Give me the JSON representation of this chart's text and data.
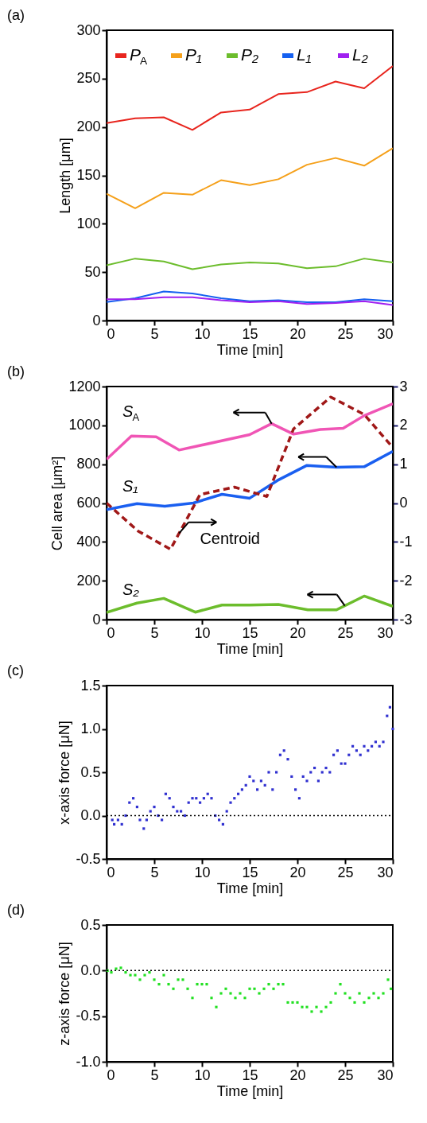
{
  "chart_data": [
    {
      "type": "line",
      "xlabel": "Time [min]",
      "ylabel": "Length [μm]",
      "xlim": [
        0,
        30
      ],
      "ylim": [
        0,
        300
      ],
      "xticks": [
        0,
        5,
        10,
        15,
        20,
        25,
        30
      ],
      "yticks": [
        0,
        50,
        100,
        150,
        200,
        250,
        300
      ],
      "legend": "top",
      "annotations": [
        "(a)"
      ],
      "x": [
        0,
        3,
        6,
        9,
        12,
        15,
        18,
        21,
        24,
        27,
        30
      ],
      "series": [
        {
          "name": "P$_{A}$",
          "color": "#e8251e",
          "values": [
            204,
            209,
            210,
            197,
            215,
            218,
            234,
            236,
            247,
            240,
            263
          ]
        },
        {
          "name": "P₁",
          "color": "#f5a01a",
          "values": [
            131,
            116,
            132,
            130,
            145,
            140,
            146,
            161,
            168,
            160,
            178
          ]
        },
        {
          "name": "P₂",
          "color": "#6cbd2c",
          "values": [
            57,
            64,
            61,
            53,
            58,
            60,
            59,
            54,
            56,
            64,
            60
          ]
        },
        {
          "name": "L₁",
          "color": "#1560f0",
          "values": [
            19,
            23,
            30,
            28,
            23,
            20,
            21,
            19,
            19,
            22,
            20
          ]
        },
        {
          "name": "L₂",
          "color": "#a020f0",
          "values": [
            22,
            22,
            24,
            24,
            21,
            19,
            20,
            17,
            18,
            20,
            16
          ]
        }
      ]
    },
    {
      "type": "line",
      "xlabel": "Time [min]",
      "ylabel": "Cell area [μm²]",
      "xlim": [
        0,
        30
      ],
      "ylim": [
        0,
        1200
      ],
      "xticks": [
        0,
        5,
        10,
        15,
        20,
        25,
        30
      ],
      "yticks": [
        0,
        200,
        400,
        600,
        800,
        1000,
        1200
      ],
      "y2lim": [
        -3,
        3
      ],
      "y2ticks": [
        -3,
        -2,
        -1,
        0,
        1,
        2,
        3
      ],
      "annotations": [
        "(b)"
      ],
      "series": [
        {
          "name": "S$_{A}$",
          "color": "#f055b5",
          "x": [
            0,
            2.6,
            5.2,
            7.6,
            15,
            17.3,
            19.6,
            22.4,
            24.8,
            27,
            30
          ],
          "values": [
            825,
            945,
            941,
            873,
            952,
            1009,
            955,
            979,
            985,
            1050,
            1111
          ]
        },
        {
          "name": "S₁",
          "color": "#1a5ff0",
          "x": [
            0,
            3.2,
            6.1,
            9.1,
            12.1,
            15,
            17.9,
            21,
            24.1,
            27,
            30
          ],
          "values": [
            566,
            597,
            584,
            600,
            645,
            625,
            716,
            794,
            784,
            787,
            866
          ]
        },
        {
          "name": "S₂",
          "color": "#6cbd2c",
          "x": [
            0,
            3.2,
            6,
            9.3,
            12.1,
            15,
            18,
            21.1,
            24.1,
            27,
            30
          ],
          "values": [
            37,
            85,
            109,
            38,
            75,
            75,
            78,
            50,
            50,
            121,
            68
          ]
        },
        {
          "name": "Centroid",
          "color": "#a01818",
          "axis": "y2",
          "line_style": "dashed",
          "x": [
            0,
            3.3,
            6.7,
            9.8,
            13.4,
            16.8,
            19.6,
            23.5,
            27,
            30
          ],
          "values": [
            0,
            -0.72,
            -1.19,
            0.22,
            0.41,
            0.17,
            1.91,
            2.73,
            2.28,
            1.43
          ]
        }
      ]
    },
    {
      "type": "scatter",
      "xlabel": "Time [min]",
      "ylabel": "x-axis force [μN]",
      "xlim": [
        0,
        30
      ],
      "ylim": [
        -0.5,
        1.5
      ],
      "xticks": [
        0,
        5,
        10,
        15,
        20,
        25,
        30
      ],
      "yticks": [
        {
          "value": -0.5,
          "label": "-0.5"
        },
        {
          "value": 0,
          "label": "0.0"
        },
        {
          "value": 0.5,
          "label": "0.5"
        },
        {
          "value": 1,
          "label": "1.0"
        },
        {
          "value": 1.5,
          "label": "1.5"
        }
      ],
      "annotations": [
        "(c)"
      ],
      "ref_lines": [
        {
          "axis": "y",
          "value": 0,
          "line_style": "dotted",
          "color": "#000000"
        }
      ],
      "x": [
        0.6,
        0.8,
        1.2,
        1.6,
        2.0,
        2.4,
        2.8,
        3.2,
        3.5,
        3.9,
        4.2,
        4.6,
        5.0,
        5.4,
        5.8,
        6.2,
        6.6,
        7.0,
        7.4,
        7.8,
        8.2,
        8.6,
        9.0,
        9.4,
        9.8,
        10.2,
        10.6,
        11.0,
        11.4,
        11.8,
        12.2,
        12.6,
        13.0,
        13.4,
        13.8,
        14.2,
        14.6,
        15.0,
        15.4,
        15.8,
        16.2,
        16.6,
        17.0,
        17.4,
        17.8,
        18.2,
        18.6,
        19.0,
        19.4,
        19.8,
        20.2,
        20.6,
        21.0,
        21.4,
        21.8,
        22.2,
        22.6,
        23.0,
        23.4,
        23.8,
        24.2,
        24.6,
        25.0,
        25.4,
        25.8,
        26.2,
        26.6,
        27.0,
        27.4,
        27.8,
        28.2,
        28.6,
        29.0,
        29.4,
        29.7,
        30.0
      ],
      "series": [
        {
          "color": "#3030d0",
          "values": [
            -0.05,
            -0.1,
            -0.05,
            -0.1,
            0.0,
            0.15,
            0.2,
            0.1,
            -0.05,
            -0.15,
            -0.05,
            0.05,
            0.1,
            0.0,
            -0.05,
            0.25,
            0.2,
            0.1,
            0.05,
            0.05,
            0.0,
            0.15,
            0.2,
            0.2,
            0.15,
            0.2,
            0.25,
            0.2,
            0.0,
            -0.05,
            -0.1,
            0.05,
            0.15,
            0.2,
            0.25,
            0.3,
            0.35,
            0.45,
            0.4,
            0.3,
            0.4,
            0.35,
            0.5,
            0.3,
            0.5,
            0.7,
            0.75,
            0.65,
            0.45,
            0.3,
            0.2,
            0.45,
            0.4,
            0.5,
            0.55,
            0.4,
            0.5,
            0.55,
            0.5,
            0.7,
            0.75,
            0.6,
            0.6,
            0.7,
            0.8,
            0.75,
            0.7,
            0.8,
            0.75,
            0.8,
            0.85,
            0.8,
            0.85,
            1.15,
            1.25,
            1.0
          ]
        }
      ]
    },
    {
      "type": "scatter",
      "xlabel": "Time [min]",
      "ylabel": "z-axis force [μN]",
      "xlim": [
        0,
        30
      ],
      "ylim": [
        -1.0,
        0.5
      ],
      "xticks": [
        0,
        5,
        10,
        15,
        20,
        25,
        30
      ],
      "yticks": [
        {
          "value": -1,
          "label": "-1.0"
        },
        {
          "value": -0.5,
          "label": "-0.5"
        },
        {
          "value": 0,
          "label": "0.0"
        },
        {
          "value": 0.5,
          "label": "0.5"
        }
      ],
      "annotations": [
        "(d)"
      ],
      "ref_lines": [
        {
          "axis": "y",
          "value": 0,
          "line_style": "dotted",
          "color": "#000000"
        }
      ],
      "x": [
        0.1,
        0.5,
        1.0,
        1.5,
        2.0,
        2.5,
        3.0,
        3.5,
        4.0,
        4.5,
        5.0,
        5.5,
        6.0,
        6.5,
        7.0,
        7.5,
        8.0,
        8.5,
        9.0,
        9.5,
        10.0,
        10.5,
        11.0,
        11.5,
        12.0,
        12.5,
        13.0,
        13.5,
        14.0,
        14.5,
        15.0,
        15.5,
        16.0,
        16.5,
        17.0,
        17.5,
        18.0,
        18.5,
        19.0,
        19.5,
        20.0,
        20.5,
        21.0,
        21.5,
        22.0,
        22.5,
        23.0,
        23.5,
        24.0,
        24.5,
        25.0,
        25.5,
        26.0,
        26.5,
        27.0,
        27.5,
        28.0,
        28.5,
        29.0,
        29.5,
        29.8
      ],
      "series": [
        {
          "color": "#22e022",
          "values": [
            0.0,
            -0.02,
            0.02,
            0.03,
            -0.02,
            -0.05,
            -0.05,
            -0.1,
            -0.05,
            -0.02,
            -0.1,
            -0.15,
            -0.05,
            -0.15,
            -0.2,
            -0.1,
            -0.1,
            -0.2,
            -0.3,
            -0.15,
            -0.15,
            -0.15,
            -0.3,
            -0.4,
            -0.25,
            -0.2,
            -0.25,
            -0.3,
            -0.25,
            -0.3,
            -0.2,
            -0.2,
            -0.25,
            -0.2,
            -0.15,
            -0.2,
            -0.15,
            -0.15,
            -0.35,
            -0.35,
            -0.35,
            -0.4,
            -0.4,
            -0.45,
            -0.4,
            -0.45,
            -0.4,
            -0.35,
            -0.25,
            -0.15,
            -0.25,
            -0.3,
            -0.35,
            -0.25,
            -0.35,
            -0.3,
            -0.25,
            -0.3,
            -0.25,
            -0.1,
            -0.2
          ]
        }
      ]
    }
  ]
}
